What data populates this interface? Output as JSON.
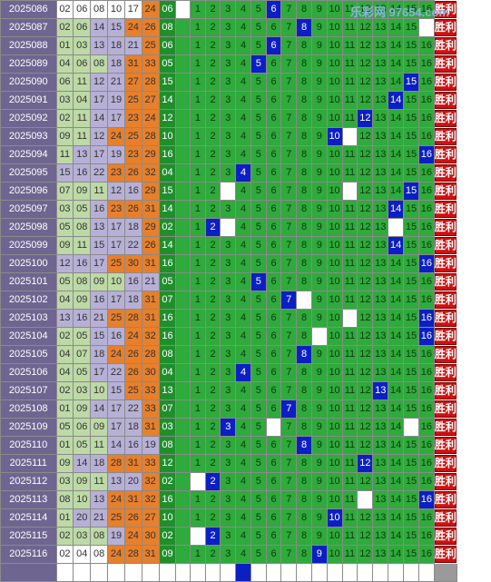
{
  "watermark": "乐彩网 97654.com",
  "result_label": "胜利",
  "rows": [
    {
      "issue": "2025086",
      "nums": [
        "02",
        "06",
        "08",
        "10",
        "17",
        "24"
      ],
      "colors": [
        "W",
        "W",
        "W",
        "W",
        "W",
        "O"
      ],
      "special": "06",
      "hit": 6,
      "blanks": [
        0
      ]
    },
    {
      "issue": "2025087",
      "nums": [
        "02",
        "06",
        "14",
        "15",
        "24",
        "26"
      ],
      "colors": [
        "G",
        "G",
        "P",
        "P",
        "O",
        "O"
      ],
      "special": "08",
      "hit": 8,
      "blanks": [
        16
      ]
    },
    {
      "issue": "2025088",
      "nums": [
        "01",
        "03",
        "13",
        "18",
        "21",
        "25"
      ],
      "colors": [
        "G",
        "G",
        "P",
        "P",
        "P",
        "O"
      ],
      "special": "06",
      "hit": 6,
      "blanks": []
    },
    {
      "issue": "2025089",
      "nums": [
        "04",
        "06",
        "08",
        "18",
        "31",
        "33"
      ],
      "colors": [
        "G",
        "G",
        "G",
        "P",
        "O",
        "O"
      ],
      "special": "05",
      "hit": 5,
      "blanks": []
    },
    {
      "issue": "2025090",
      "nums": [
        "06",
        "11",
        "12",
        "21",
        "27",
        "28"
      ],
      "colors": [
        "G",
        "G",
        "P",
        "P",
        "O",
        "O"
      ],
      "special": "15",
      "hit": 15,
      "blanks": []
    },
    {
      "issue": "2025091",
      "nums": [
        "03",
        "04",
        "17",
        "19",
        "25",
        "27"
      ],
      "colors": [
        "G",
        "G",
        "P",
        "P",
        "O",
        "O"
      ],
      "special": "14",
      "hit": 14,
      "blanks": []
    },
    {
      "issue": "2025092",
      "nums": [
        "02",
        "11",
        "14",
        "17",
        "23",
        "24"
      ],
      "colors": [
        "G",
        "G",
        "P",
        "P",
        "O",
        "O"
      ],
      "special": "12",
      "hit": 12,
      "blanks": []
    },
    {
      "issue": "2025093",
      "nums": [
        "09",
        "11",
        "12",
        "24",
        "25",
        "28"
      ],
      "colors": [
        "G",
        "G",
        "P",
        "O",
        "O",
        "O"
      ],
      "special": "10",
      "hit": 10,
      "blanks": [
        11
      ]
    },
    {
      "issue": "2025094",
      "nums": [
        "11",
        "13",
        "17",
        "19",
        "23",
        "29"
      ],
      "colors": [
        "G",
        "P",
        "P",
        "P",
        "O",
        "O"
      ],
      "special": "16",
      "hit": 16,
      "blanks": []
    },
    {
      "issue": "2025095",
      "nums": [
        "15",
        "16",
        "22",
        "23",
        "26",
        "32"
      ],
      "colors": [
        "P",
        "P",
        "P",
        "O",
        "O",
        "O"
      ],
      "special": "04",
      "hit": 4,
      "blanks": []
    },
    {
      "issue": "2025096",
      "nums": [
        "07",
        "09",
        "11",
        "12",
        "16",
        "29"
      ],
      "colors": [
        "G",
        "G",
        "G",
        "P",
        "P",
        "O"
      ],
      "special": "15",
      "hit": 15,
      "blanks": [
        3,
        11
      ]
    },
    {
      "issue": "2025097",
      "nums": [
        "03",
        "05",
        "16",
        "23",
        "26",
        "31"
      ],
      "colors": [
        "G",
        "G",
        "P",
        "O",
        "O",
        "O"
      ],
      "special": "14",
      "hit": 14,
      "blanks": []
    },
    {
      "issue": "2025098",
      "nums": [
        "05",
        "08",
        "13",
        "17",
        "18",
        "29"
      ],
      "colors": [
        "G",
        "G",
        "P",
        "P",
        "P",
        "O"
      ],
      "special": "02",
      "hit": 2,
      "blanks": [
        3,
        14
      ]
    },
    {
      "issue": "2025099",
      "nums": [
        "09",
        "11",
        "15",
        "17",
        "22",
        "26"
      ],
      "colors": [
        "G",
        "G",
        "P",
        "P",
        "P",
        "O"
      ],
      "special": "14",
      "hit": 14,
      "blanks": []
    },
    {
      "issue": "2025100",
      "nums": [
        "12",
        "16",
        "17",
        "25",
        "30",
        "31"
      ],
      "colors": [
        "P",
        "P",
        "P",
        "O",
        "O",
        "O"
      ],
      "special": "16",
      "hit": 16,
      "blanks": []
    },
    {
      "issue": "2025101",
      "nums": [
        "05",
        "08",
        "09",
        "10",
        "16",
        "21"
      ],
      "colors": [
        "G",
        "G",
        "G",
        "G",
        "P",
        "P"
      ],
      "special": "05",
      "hit": 5,
      "blanks": []
    },
    {
      "issue": "2025102",
      "nums": [
        "04",
        "09",
        "16",
        "17",
        "18",
        "31"
      ],
      "colors": [
        "G",
        "G",
        "P",
        "P",
        "P",
        "O"
      ],
      "special": "07",
      "hit": 7,
      "blanks": [
        8
      ]
    },
    {
      "issue": "2025103",
      "nums": [
        "13",
        "16",
        "21",
        "25",
        "28",
        "31"
      ],
      "colors": [
        "P",
        "P",
        "P",
        "O",
        "O",
        "O"
      ],
      "special": "16",
      "hit": 16,
      "blanks": [
        11
      ]
    },
    {
      "issue": "2025104",
      "nums": [
        "02",
        "05",
        "15",
        "16",
        "24",
        "32"
      ],
      "colors": [
        "G",
        "G",
        "P",
        "P",
        "O",
        "O"
      ],
      "special": "16",
      "hit": 16,
      "blanks": [
        9
      ]
    },
    {
      "issue": "2025105",
      "nums": [
        "04",
        "07",
        "18",
        "24",
        "26",
        "28"
      ],
      "colors": [
        "G",
        "G",
        "P",
        "O",
        "O",
        "O"
      ],
      "special": "08",
      "hit": 8,
      "blanks": []
    },
    {
      "issue": "2025106",
      "nums": [
        "04",
        "05",
        "17",
        "22",
        "26",
        "30"
      ],
      "colors": [
        "G",
        "G",
        "P",
        "P",
        "O",
        "O"
      ],
      "special": "04",
      "hit": 4,
      "blanks": []
    },
    {
      "issue": "2025107",
      "nums": [
        "02",
        "03",
        "10",
        "15",
        "25",
        "33"
      ],
      "colors": [
        "G",
        "G",
        "G",
        "P",
        "O",
        "O"
      ],
      "special": "13",
      "hit": 13,
      "blanks": []
    },
    {
      "issue": "2025108",
      "nums": [
        "01",
        "09",
        "14",
        "17",
        "22",
        "33"
      ],
      "colors": [
        "G",
        "G",
        "P",
        "P",
        "P",
        "O"
      ],
      "special": "07",
      "hit": 7,
      "blanks": []
    },
    {
      "issue": "2025109",
      "nums": [
        "05",
        "06",
        "09",
        "17",
        "18",
        "31"
      ],
      "colors": [
        "G",
        "G",
        "G",
        "P",
        "P",
        "O"
      ],
      "special": "03",
      "hit": 3,
      "blanks": [
        6,
        15
      ]
    },
    {
      "issue": "2025110",
      "nums": [
        "01",
        "05",
        "11",
        "14",
        "16",
        "19"
      ],
      "colors": [
        "G",
        "G",
        "G",
        "P",
        "P",
        "P"
      ],
      "special": "08",
      "hit": 8,
      "blanks": []
    },
    {
      "issue": "2025111",
      "nums": [
        "09",
        "14",
        "18",
        "28",
        "31",
        "33"
      ],
      "colors": [
        "G",
        "P",
        "P",
        "O",
        "O",
        "O"
      ],
      "special": "12",
      "hit": 12,
      "blanks": []
    },
    {
      "issue": "2025112",
      "nums": [
        "03",
        "09",
        "11",
        "13",
        "20",
        "32"
      ],
      "colors": [
        "G",
        "G",
        "G",
        "P",
        "P",
        "O"
      ],
      "special": "02",
      "hit": 2,
      "blanks": [
        1
      ]
    },
    {
      "issue": "2025113",
      "nums": [
        "08",
        "10",
        "13",
        "24",
        "31",
        "32"
      ],
      "colors": [
        "G",
        "G",
        "P",
        "O",
        "O",
        "O"
      ],
      "special": "16",
      "hit": 16,
      "blanks": [
        12
      ]
    },
    {
      "issue": "2025114",
      "nums": [
        "01",
        "20",
        "21",
        "25",
        "26",
        "27"
      ],
      "colors": [
        "G",
        "P",
        "P",
        "O",
        "O",
        "O"
      ],
      "special": "10",
      "hit": 10,
      "blanks": []
    },
    {
      "issue": "2025115",
      "nums": [
        "02",
        "03",
        "08",
        "19",
        "24",
        "30"
      ],
      "colors": [
        "G",
        "G",
        "G",
        "P",
        "O",
        "O"
      ],
      "special": "02",
      "hit": 2,
      "blanks": [
        1
      ]
    },
    {
      "issue": "2025116",
      "nums": [
        "02",
        "04",
        "08",
        "24",
        "28",
        "31"
      ],
      "colors": [
        "W",
        "W",
        "W",
        "O",
        "O",
        "O"
      ],
      "special": "09",
      "hit": 9,
      "blanks": []
    },
    {
      "issue": "",
      "nums": [
        "",
        "",
        "",
        "",
        "",
        ""
      ],
      "colors": [
        "W",
        "W",
        "W",
        "W",
        "W",
        "W"
      ],
      "special": "",
      "hit": 4,
      "blanks": [],
      "empty": true
    }
  ]
}
